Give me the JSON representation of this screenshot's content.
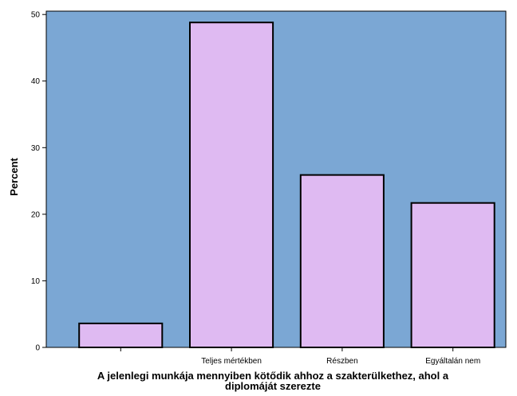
{
  "chart_data": {
    "type": "bar",
    "categories": [
      "",
      "Teljes mértékben",
      "Részben",
      "Egyáltalán nem"
    ],
    "values": [
      3.6,
      48.8,
      25.9,
      21.7
    ],
    "title": "",
    "xlabel": "A jelenlegi munkája mennyiben kötődik ahhoz a szakterülkethez, ahol a diplomáját szerezte",
    "ylabel": "Percent",
    "ylim": [
      0,
      50.5
    ],
    "yticks": [
      0,
      10,
      20,
      30,
      40,
      50
    ],
    "grid": false,
    "legend": "none",
    "colors": {
      "plot_background": "#7ba7d4",
      "bar_fill": "#dfbaf2",
      "bar_stroke": "#000000",
      "axis": "#000000"
    }
  }
}
